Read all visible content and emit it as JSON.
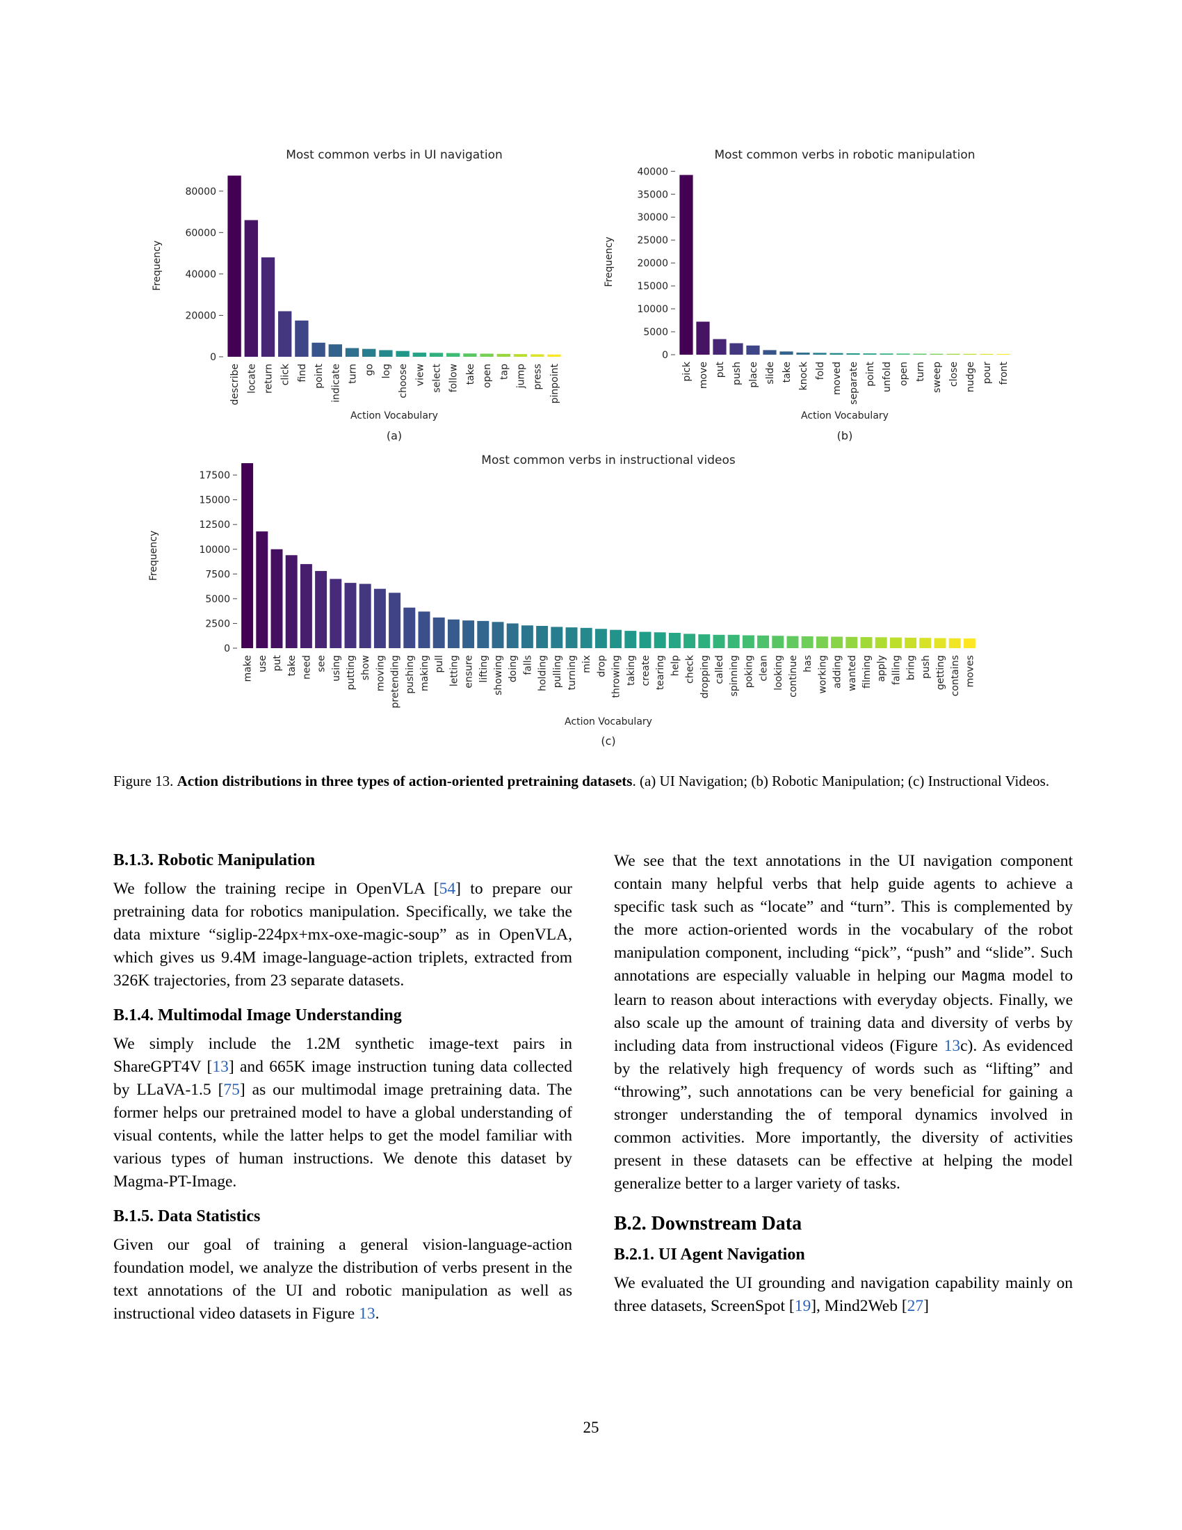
{
  "chart_data": [
    {
      "type": "bar",
      "title": "Most common verbs in UI navigation",
      "xlabel": "Action Vocabulary",
      "ylabel": "Frequency",
      "panel_label": "(a)",
      "ylim": [
        0,
        88000
      ],
      "yticks": [
        0,
        20000,
        40000,
        60000,
        80000
      ],
      "grid": false,
      "colormap": "viridis",
      "categories": [
        "describe",
        "locate",
        "return",
        "click",
        "find",
        "point",
        "indicate",
        "turn",
        "go",
        "log",
        "choose",
        "view",
        "select",
        "follow",
        "take",
        "open",
        "tap",
        "jump",
        "press",
        "pinpoint"
      ],
      "values": [
        87500,
        66000,
        48000,
        22000,
        17500,
        6800,
        6000,
        4200,
        3800,
        3200,
        2800,
        2000,
        1900,
        1800,
        1600,
        1500,
        1400,
        1300,
        1200,
        1100
      ]
    },
    {
      "type": "bar",
      "title": "Most common verbs in robotic manipulation",
      "xlabel": "Action Vocabulary",
      "ylabel": "Frequency",
      "panel_label": "(b)",
      "ylim": [
        0,
        40500
      ],
      "yticks": [
        0,
        5000,
        10000,
        15000,
        20000,
        25000,
        30000,
        35000,
        40000
      ],
      "grid": false,
      "colormap": "viridis",
      "categories": [
        "pick",
        "move",
        "put",
        "push",
        "place",
        "slide",
        "take",
        "knock",
        "fold",
        "moved",
        "separate",
        "point",
        "unfold",
        "open",
        "turn",
        "sweep",
        "close",
        "nudge",
        "pour",
        "front"
      ],
      "values": [
        39200,
        7200,
        3400,
        2500,
        2000,
        1000,
        700,
        450,
        400,
        350,
        300,
        280,
        260,
        240,
        220,
        200,
        190,
        180,
        170,
        160
      ]
    },
    {
      "type": "bar",
      "title": "Most common verbs in instructional videos",
      "xlabel": "Action Vocabulary",
      "ylabel": "Frequency",
      "panel_label": "(c)",
      "ylim": [
        0,
        18700
      ],
      "yticks": [
        0,
        2500,
        5000,
        7500,
        10000,
        12500,
        15000,
        17500
      ],
      "grid": false,
      "colormap": "viridis",
      "categories": [
        "make",
        "use",
        "put",
        "take",
        "need",
        "see",
        "using",
        "putting",
        "show",
        "moving",
        "pretending",
        "pushing",
        "making",
        "pull",
        "letting",
        "ensure",
        "lifting",
        "showing",
        "doing",
        "falls",
        "holding",
        "pulling",
        "turning",
        "mix",
        "drop",
        "throwing",
        "taking",
        "create",
        "tearing",
        "help",
        "check",
        "dropping",
        "called",
        "spinning",
        "poking",
        "clean",
        "looking",
        "continue",
        "has",
        "working",
        "adding",
        "wanted",
        "filming",
        "apply",
        "falling",
        "bring",
        "push",
        "getting",
        "contains",
        "moves"
      ],
      "values": [
        18700,
        11800,
        10000,
        9400,
        8500,
        7800,
        7000,
        6600,
        6500,
        6000,
        5600,
        4100,
        3700,
        3100,
        2900,
        2800,
        2750,
        2650,
        2500,
        2300,
        2250,
        2150,
        2100,
        2050,
        1950,
        1850,
        1750,
        1650,
        1600,
        1550,
        1450,
        1400,
        1350,
        1350,
        1300,
        1280,
        1250,
        1220,
        1200,
        1180,
        1160,
        1140,
        1120,
        1100,
        1080,
        1060,
        1040,
        1020,
        1000,
        980
      ]
    }
  ],
  "caption": {
    "label": "Figure 13.",
    "bold": "Action distributions in three types of action-oriented pretraining datasets",
    "rest": ". (a) UI Navigation; (b) Robotic Manipulation; (c) Instructional Videos."
  },
  "left_column": {
    "s1_heading": "B.1.3. Robotic Manipulation",
    "s1_p1": "We follow the training recipe in OpenVLA [",
    "s1_ref1": "54",
    "s1_p2": "] to prepare our pretraining data for robotics manipulation. Specifically, we take the data mixture “siglip-224px+mx-oxe-magic-soup” as in OpenVLA, which gives us 9.4M image-language-action triplets, extracted from 326K trajectories, from 23 separate datasets.",
    "s2_heading": "B.1.4. Multimodal Image Understanding",
    "s2_p1": "We simply include the 1.2M synthetic image-text pairs in ShareGPT4V [",
    "s2_ref1": "13",
    "s2_p2": "] and 665K image instruction tuning data collected by LLaVA-1.5 [",
    "s2_ref2": "75",
    "s2_p3": "] as our multimodal image pretraining data. The former helps our pretrained model to have a global understanding of visual contents, while the latter helps to get the model familiar with various types of human instructions. We denote this dataset by Magma-PT-Image.",
    "s3_heading": "B.1.5. Data Statistics",
    "s3_p1": "Given our goal of training a general vision-language-action foundation model, we analyze the distribution of verbs present in the text annotations of the UI and robotic manipulation as well as instructional video datasets in Figure ",
    "s3_ref1": "13",
    "s3_p2": "."
  },
  "right_column": {
    "p1": "We see that the text annotations in the UI navigation component contain many helpful verbs that help guide agents to achieve a specific task such as “locate” and “turn”. This is complemented by the more action-oriented words in the vocabulary of the robot manipulation component, including “pick”, “push” and “slide”. Such annotations are especially valuable in helping our ",
    "p1_mono": "Magma",
    "p1_b": " model to learn to reason about interactions with everyday objects. Finally, we also scale up the amount of training data and diversity of verbs by including data from instructional videos (Figure ",
    "p1_ref": "13",
    "p1_c": "c). As evidenced by the relatively high frequency of words such as “lifting” and “throwing”, such annotations can be very beneficial for gaining a stronger understanding the of temporal dynamics involved in common activities. More importantly, the diversity of activities present in these datasets can be effective at helping the model generalize better to a larger variety of tasks.",
    "h2": "B.2. Downstream Data",
    "h3": "B.2.1. UI Agent Navigation",
    "p2": "We evaluated the UI grounding and navigation capability mainly on three datasets, ScreenSpot [",
    "p2_ref1": "19",
    "p2_b": "], Mind2Web [",
    "p2_ref2": "27",
    "p2_c": "]"
  },
  "page_number": "25"
}
